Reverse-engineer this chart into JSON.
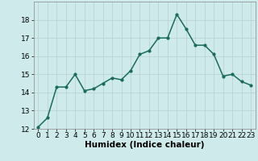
{
  "x": [
    0,
    1,
    2,
    3,
    4,
    5,
    6,
    7,
    8,
    9,
    10,
    11,
    12,
    13,
    14,
    15,
    16,
    17,
    18,
    19,
    20,
    21,
    22,
    23
  ],
  "y": [
    12.1,
    12.6,
    14.3,
    14.3,
    15.0,
    14.1,
    14.2,
    14.5,
    14.8,
    14.7,
    15.2,
    16.1,
    16.3,
    17.0,
    17.0,
    18.3,
    17.5,
    16.6,
    16.6,
    16.1,
    14.9,
    15.0,
    14.6,
    14.4
  ],
  "xlabel": "Humidex (Indice chaleur)",
  "ylim": [
    12,
    19
  ],
  "xlim": [
    -0.5,
    23.5
  ],
  "yticks": [
    12,
    13,
    14,
    15,
    16,
    17,
    18
  ],
  "xticks": [
    0,
    1,
    2,
    3,
    4,
    5,
    6,
    7,
    8,
    9,
    10,
    11,
    12,
    13,
    14,
    15,
    16,
    17,
    18,
    19,
    20,
    21,
    22,
    23
  ],
  "line_color": "#1a6b5a",
  "marker": "o",
  "marker_size": 2.0,
  "bg_color": "#ceeaea",
  "grid_color": "#b8d4d4",
  "xlabel_fontsize": 7.5,
  "tick_fontsize": 6.5,
  "line_width": 1.1
}
